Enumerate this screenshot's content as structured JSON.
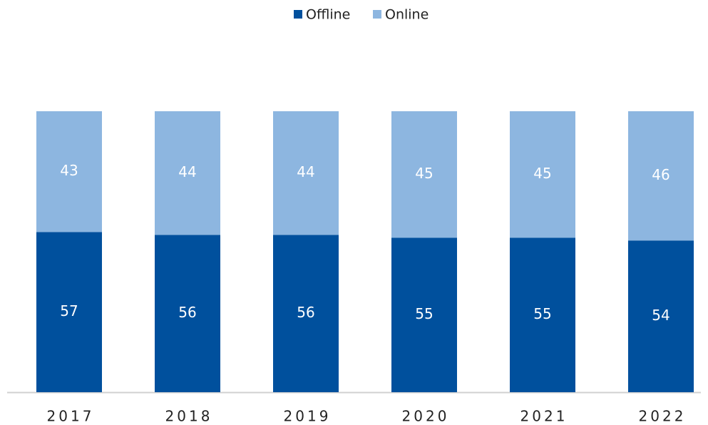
{
  "chart_data": {
    "type": "stacked_bar",
    "categories": [
      "2017",
      "2018",
      "2019",
      "2020",
      "2021",
      "2022"
    ],
    "series": [
      {
        "name": "Offline",
        "color": "#00509d",
        "values": [
          57,
          56,
          56,
          55,
          55,
          54
        ]
      },
      {
        "name": "Online",
        "color": "#8db6e0",
        "values": [
          43,
          44,
          44,
          45,
          45,
          46
        ]
      }
    ],
    "ylim": [
      0,
      100
    ],
    "legend": "top"
  }
}
